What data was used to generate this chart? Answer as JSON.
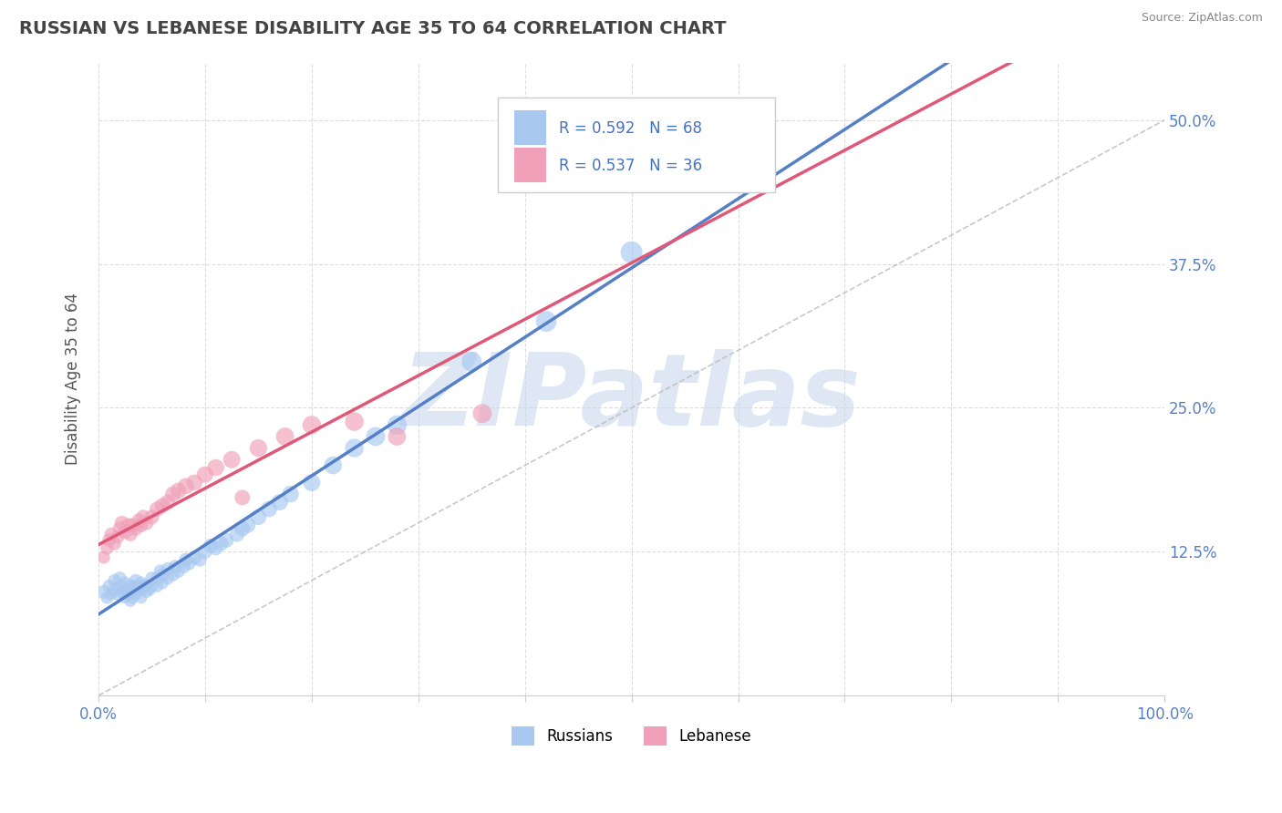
{
  "title": "RUSSIAN VS LEBANESE DISABILITY AGE 35 TO 64 CORRELATION CHART",
  "source_text": "Source: ZipAtlas.com",
  "ylabel": "Disability Age 35 to 64",
  "xlim": [
    0.0,
    1.0
  ],
  "ylim": [
    0.0,
    0.55
  ],
  "xtick_positions": [
    0.0,
    0.1,
    0.2,
    0.3,
    0.4,
    0.5,
    0.6,
    0.7,
    0.8,
    0.9,
    1.0
  ],
  "xticklabels_show": {
    "0": "0.0%",
    "10": "100.0%"
  },
  "ytick_positions": [
    0.0,
    0.125,
    0.25,
    0.375,
    0.5
  ],
  "yticklabels": [
    "",
    "12.5%",
    "25.0%",
    "37.5%",
    "50.0%"
  ],
  "russian_R": 0.592,
  "russian_N": 68,
  "lebanese_R": 0.537,
  "lebanese_N": 36,
  "blue_color": "#A8C8F0",
  "pink_color": "#F0A0B8",
  "blue_line_color": "#5580C8",
  "pink_line_color": "#E05878",
  "grid_color": "#DDDDDD",
  "watermark_color": "#C8D8EC",
  "watermark_text": "ZIPatlas",
  "russian_x": [
    0.005,
    0.008,
    0.01,
    0.012,
    0.015,
    0.015,
    0.018,
    0.02,
    0.02,
    0.022,
    0.025,
    0.025,
    0.025,
    0.028,
    0.03,
    0.03,
    0.03,
    0.032,
    0.032,
    0.035,
    0.035,
    0.035,
    0.038,
    0.04,
    0.04,
    0.04,
    0.042,
    0.045,
    0.045,
    0.048,
    0.05,
    0.05,
    0.055,
    0.055,
    0.058,
    0.06,
    0.06,
    0.065,
    0.065,
    0.07,
    0.072,
    0.075,
    0.08,
    0.082,
    0.085,
    0.09,
    0.095,
    0.1,
    0.105,
    0.11,
    0.115,
    0.12,
    0.13,
    0.135,
    0.14,
    0.15,
    0.16,
    0.17,
    0.18,
    0.2,
    0.22,
    0.24,
    0.26,
    0.28,
    0.35,
    0.42,
    0.5,
    0.62
  ],
  "russian_y": [
    0.09,
    0.085,
    0.095,
    0.088,
    0.092,
    0.1,
    0.088,
    0.095,
    0.102,
    0.09,
    0.085,
    0.092,
    0.098,
    0.088,
    0.082,
    0.09,
    0.096,
    0.085,
    0.093,
    0.088,
    0.095,
    0.1,
    0.092,
    0.085,
    0.092,
    0.098,
    0.095,
    0.09,
    0.096,
    0.092,
    0.095,
    0.102,
    0.095,
    0.102,
    0.108,
    0.098,
    0.105,
    0.102,
    0.11,
    0.105,
    0.112,
    0.108,
    0.112,
    0.118,
    0.115,
    0.12,
    0.118,
    0.125,
    0.13,
    0.128,
    0.132,
    0.135,
    0.14,
    0.145,
    0.148,
    0.155,
    0.162,
    0.168,
    0.175,
    0.185,
    0.2,
    0.215,
    0.225,
    0.235,
    0.29,
    0.325,
    0.385,
    0.455
  ],
  "lebanese_x": [
    0.005,
    0.008,
    0.01,
    0.012,
    0.015,
    0.018,
    0.02,
    0.022,
    0.025,
    0.028,
    0.03,
    0.032,
    0.035,
    0.038,
    0.04,
    0.042,
    0.045,
    0.05,
    0.055,
    0.06,
    0.065,
    0.07,
    0.075,
    0.082,
    0.09,
    0.1,
    0.11,
    0.125,
    0.135,
    0.15,
    0.175,
    0.2,
    0.24,
    0.28,
    0.36,
    0.62
  ],
  "lebanese_y": [
    0.12,
    0.128,
    0.135,
    0.14,
    0.132,
    0.138,
    0.145,
    0.15,
    0.142,
    0.148,
    0.14,
    0.148,
    0.145,
    0.152,
    0.148,
    0.155,
    0.15,
    0.155,
    0.162,
    0.165,
    0.168,
    0.175,
    0.178,
    0.182,
    0.185,
    0.192,
    0.198,
    0.205,
    0.172,
    0.215,
    0.225,
    0.235,
    0.238,
    0.225,
    0.245,
    0.48
  ],
  "russian_point_sizes": [
    120,
    100,
    110,
    95,
    100,
    105,
    95,
    100,
    108,
    98,
    90,
    95,
    102,
    92,
    88,
    95,
    100,
    90,
    96,
    92,
    98,
    105,
    95,
    90,
    96,
    102,
    98,
    95,
    100,
    96,
    98,
    105,
    98,
    105,
    110,
    102,
    108,
    105,
    112,
    108,
    115,
    110,
    115,
    120,
    118,
    122,
    120,
    128,
    132,
    130,
    135,
    138,
    142,
    148,
    150,
    158,
    165,
    170,
    178,
    188,
    200,
    215,
    225,
    235,
    250,
    270,
    300,
    340
  ],
  "lebanese_point_sizes": [
    100,
    108,
    115,
    120,
    112,
    118,
    125,
    130,
    120,
    128,
    120,
    128,
    125,
    132,
    128,
    135,
    130,
    135,
    142,
    145,
    148,
    155,
    158,
    162,
    165,
    172,
    178,
    185,
    150,
    195,
    205,
    215,
    218,
    205,
    225,
    400
  ]
}
